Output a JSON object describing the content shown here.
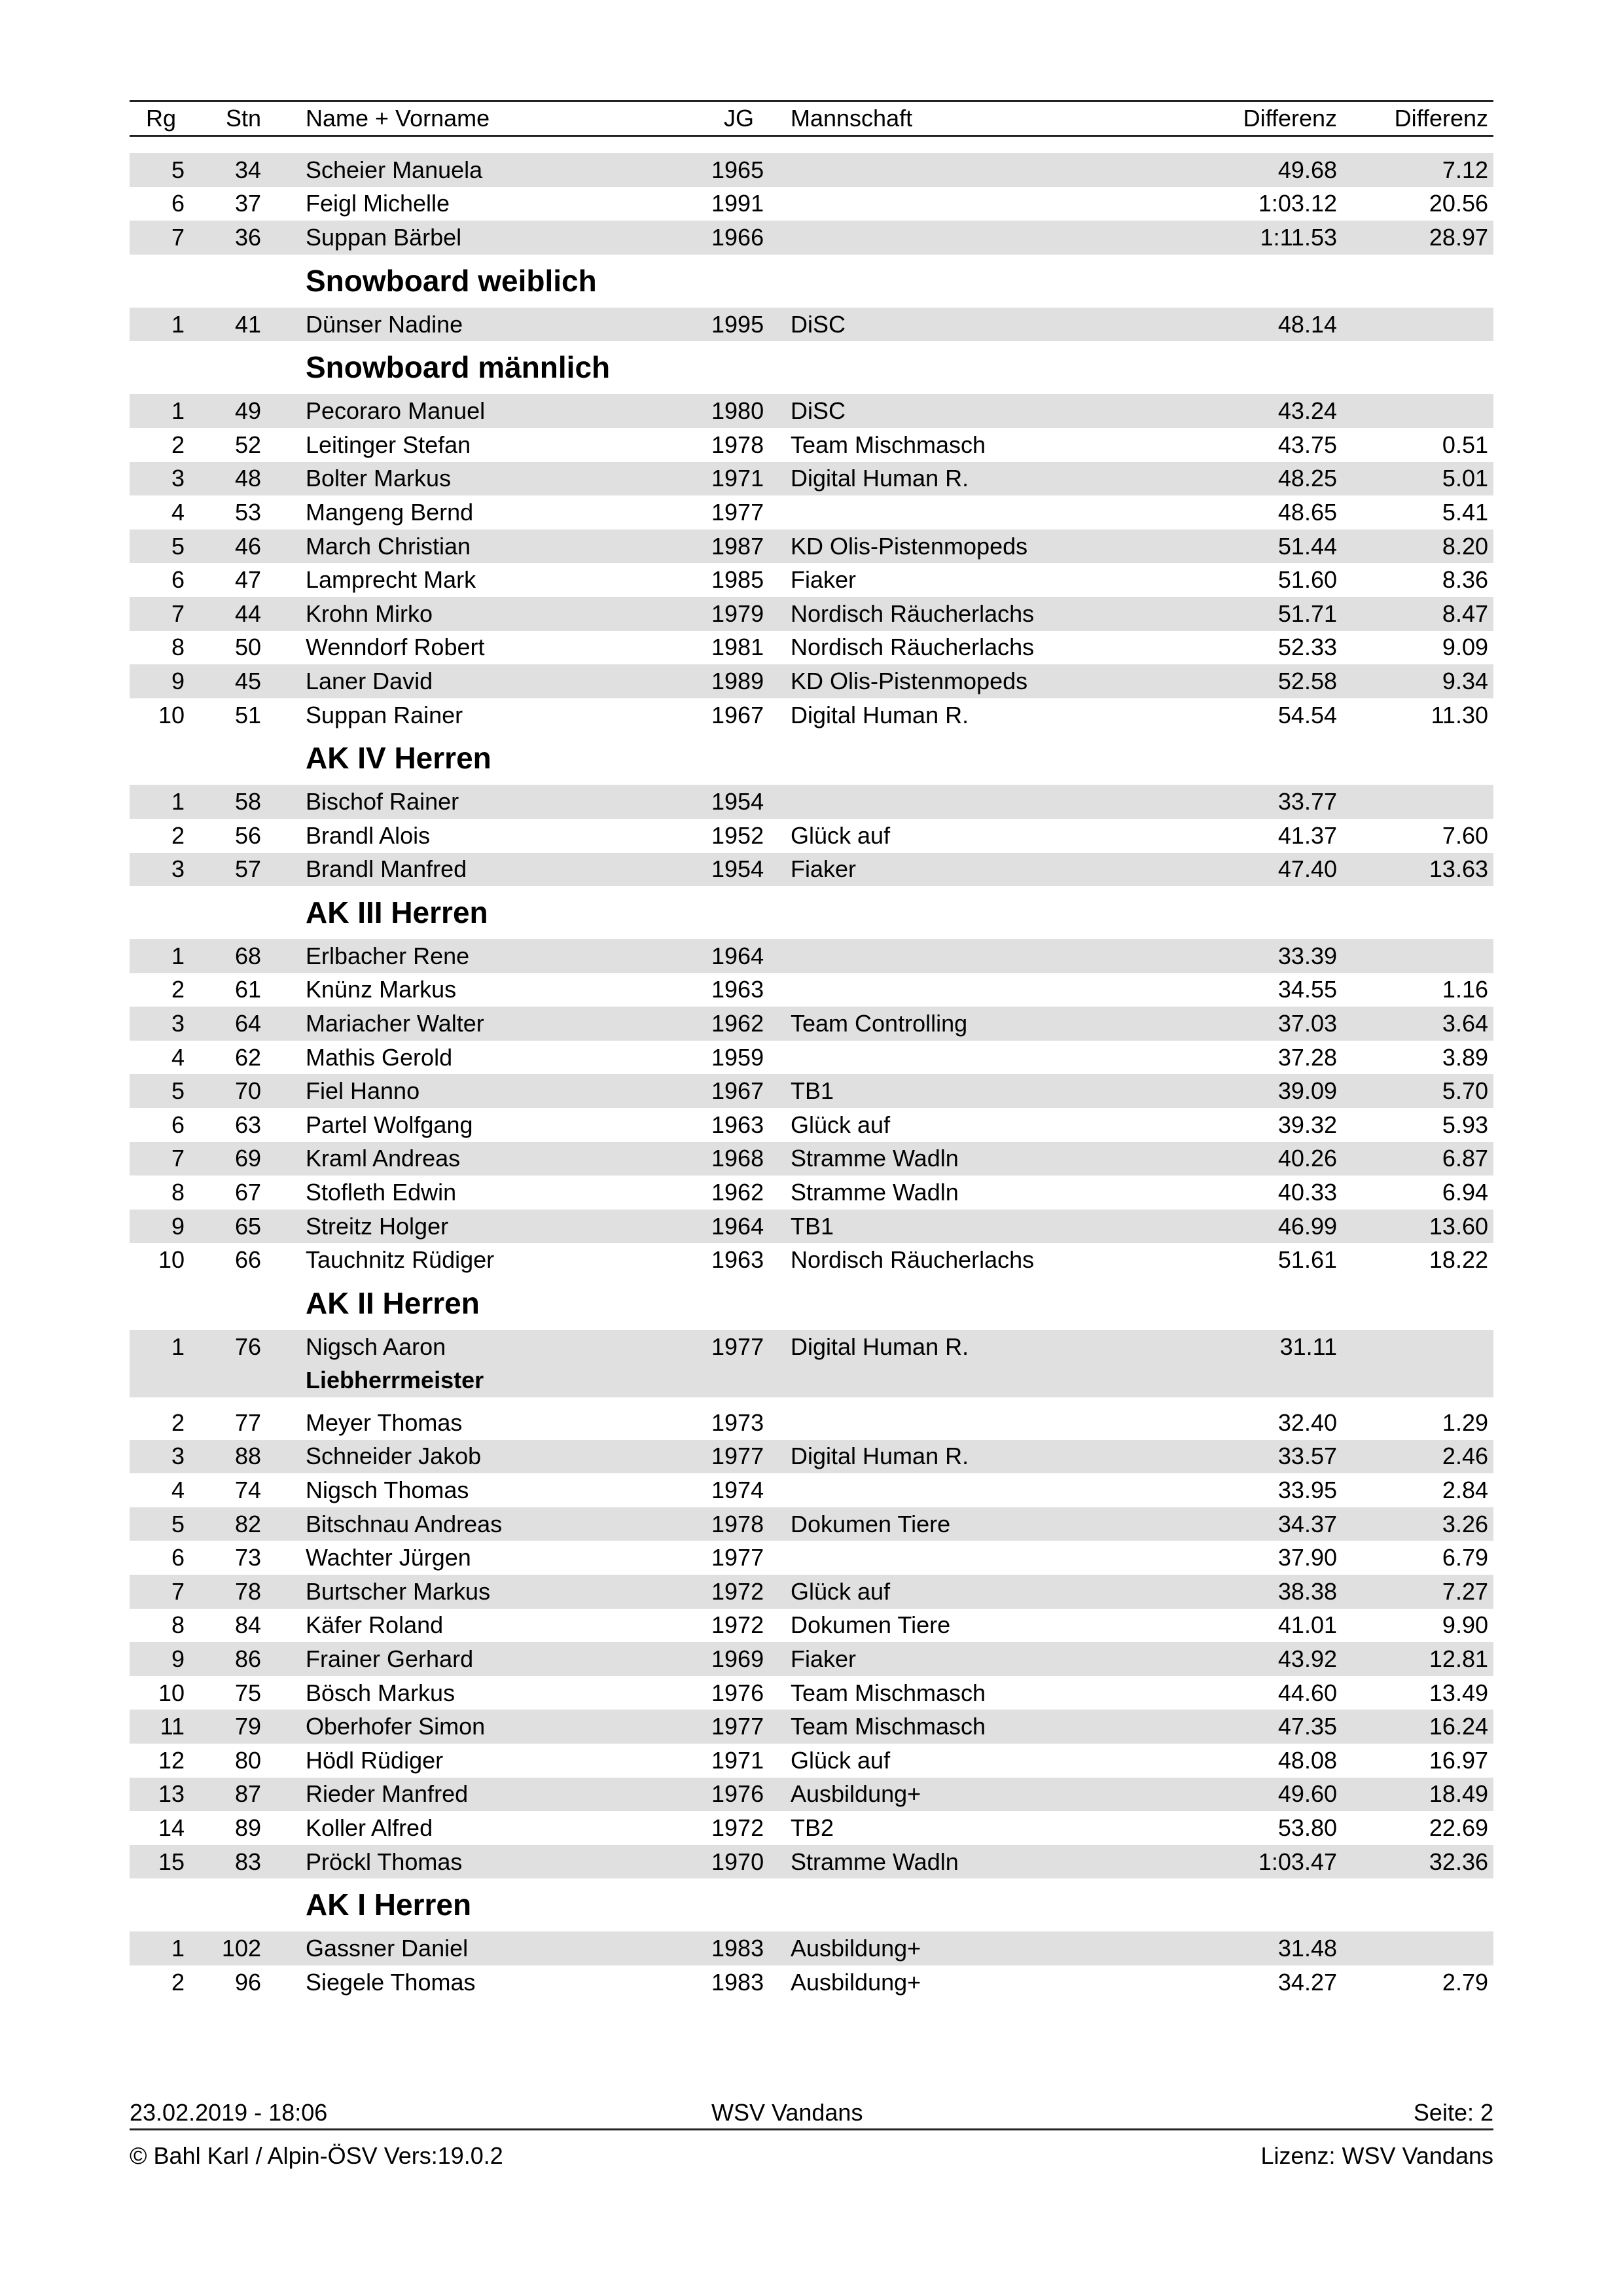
{
  "header": {
    "rg": "Rg",
    "stn": "Stn",
    "name": "Name + Vorname",
    "jg": "JG",
    "team": "Mannschaft",
    "diff1": "Differenz",
    "diff2": "Differenz"
  },
  "groups": [
    {
      "title": "",
      "rows": [
        {
          "rg": "5",
          "stn": "34",
          "name": "Scheier Manuela",
          "jg": "1965",
          "team": "",
          "d1": "49.68",
          "d2": "7.12"
        },
        {
          "rg": "6",
          "stn": "37",
          "name": "Feigl Michelle",
          "jg": "1991",
          "team": "",
          "d1": "1:03.12",
          "d2": "20.56"
        },
        {
          "rg": "7",
          "stn": "36",
          "name": "Suppan Bärbel",
          "jg": "1966",
          "team": "",
          "d1": "1:11.53",
          "d2": "28.97"
        }
      ]
    },
    {
      "title": "Snowboard weiblich",
      "rows": [
        {
          "rg": "1",
          "stn": "41",
          "name": "Dünser Nadine",
          "jg": "1995",
          "team": "DiSC",
          "d1": "48.14",
          "d2": ""
        }
      ]
    },
    {
      "title": "Snowboard männlich",
      "rows": [
        {
          "rg": "1",
          "stn": "49",
          "name": "Pecoraro Manuel",
          "jg": "1980",
          "team": "DiSC",
          "d1": "43.24",
          "d2": ""
        },
        {
          "rg": "2",
          "stn": "52",
          "name": "Leitinger Stefan",
          "jg": "1978",
          "team": "Team Mischmasch",
          "d1": "43.75",
          "d2": "0.51"
        },
        {
          "rg": "3",
          "stn": "48",
          "name": "Bolter Markus",
          "jg": "1971",
          "team": "Digital Human R.",
          "d1": "48.25",
          "d2": "5.01"
        },
        {
          "rg": "4",
          "stn": "53",
          "name": "Mangeng Bernd",
          "jg": "1977",
          "team": "",
          "d1": "48.65",
          "d2": "5.41"
        },
        {
          "rg": "5",
          "stn": "46",
          "name": "March Christian",
          "jg": "1987",
          "team": "KD Olis-Pistenmopeds",
          "d1": "51.44",
          "d2": "8.20"
        },
        {
          "rg": "6",
          "stn": "47",
          "name": "Lamprecht Mark",
          "jg": "1985",
          "team": "Fiaker",
          "d1": "51.60",
          "d2": "8.36"
        },
        {
          "rg": "7",
          "stn": "44",
          "name": "Krohn Mirko",
          "jg": "1979",
          "team": "Nordisch Räucherlachs",
          "d1": "51.71",
          "d2": "8.47"
        },
        {
          "rg": "8",
          "stn": "50",
          "name": "Wenndorf Robert",
          "jg": "1981",
          "team": "Nordisch Räucherlachs",
          "d1": "52.33",
          "d2": "9.09"
        },
        {
          "rg": "9",
          "stn": "45",
          "name": "Laner David",
          "jg": "1989",
          "team": "KD Olis-Pistenmopeds",
          "d1": "52.58",
          "d2": "9.34"
        },
        {
          "rg": "10",
          "stn": "51",
          "name": "Suppan Rainer",
          "jg": "1967",
          "team": "Digital Human R.",
          "d1": "54.54",
          "d2": "11.30"
        }
      ]
    },
    {
      "title": "AK IV Herren",
      "rows": [
        {
          "rg": "1",
          "stn": "58",
          "name": "Bischof Rainer",
          "jg": "1954",
          "team": "",
          "d1": "33.77",
          "d2": ""
        },
        {
          "rg": "2",
          "stn": "56",
          "name": "Brandl Alois",
          "jg": "1952",
          "team": "Glück auf",
          "d1": "41.37",
          "d2": "7.60"
        },
        {
          "rg": "3",
          "stn": "57",
          "name": "Brandl Manfred",
          "jg": "1954",
          "team": "Fiaker",
          "d1": "47.40",
          "d2": "13.63"
        }
      ]
    },
    {
      "title": "AK III Herren",
      "rows": [
        {
          "rg": "1",
          "stn": "68",
          "name": "Erlbacher Rene",
          "jg": "1964",
          "team": "",
          "d1": "33.39",
          "d2": ""
        },
        {
          "rg": "2",
          "stn": "61",
          "name": "Knünz Markus",
          "jg": "1963",
          "team": "",
          "d1": "34.55",
          "d2": "1.16"
        },
        {
          "rg": "3",
          "stn": "64",
          "name": "Mariacher Walter",
          "jg": "1962",
          "team": "Team Controlling",
          "d1": "37.03",
          "d2": "3.64"
        },
        {
          "rg": "4",
          "stn": "62",
          "name": "Mathis Gerold",
          "jg": "1959",
          "team": "",
          "d1": "37.28",
          "d2": "3.89"
        },
        {
          "rg": "5",
          "stn": "70",
          "name": "Fiel Hanno",
          "jg": "1967",
          "team": "TB1",
          "d1": "39.09",
          "d2": "5.70"
        },
        {
          "rg": "6",
          "stn": "63",
          "name": "Partel Wolfgang",
          "jg": "1963",
          "team": "Glück auf",
          "d1": "39.32",
          "d2": "5.93"
        },
        {
          "rg": "7",
          "stn": "69",
          "name": "Kraml Andreas",
          "jg": "1968",
          "team": "Stramme Wadln",
          "d1": "40.26",
          "d2": "6.87"
        },
        {
          "rg": "8",
          "stn": "67",
          "name": "Stofleth Edwin",
          "jg": "1962",
          "team": "Stramme Wadln",
          "d1": "40.33",
          "d2": "6.94"
        },
        {
          "rg": "9",
          "stn": "65",
          "name": "Streitz Holger",
          "jg": "1964",
          "team": "TB1",
          "d1": "46.99",
          "d2": "13.60"
        },
        {
          "rg": "10",
          "stn": "66",
          "name": "Tauchnitz Rüdiger",
          "jg": "1963",
          "team": "Nordisch Räucherlachs",
          "d1": "51.61",
          "d2": "18.22"
        }
      ]
    },
    {
      "title": "AK II Herren",
      "rows": [
        {
          "rg": "1",
          "stn": "76",
          "name": "Nigsch Aaron",
          "note": "Liebherrmeister",
          "jg": "1977",
          "team": "Digital Human R.",
          "d1": "31.11",
          "d2": ""
        },
        {
          "rg": "2",
          "stn": "77",
          "name": "Meyer Thomas",
          "jg": "1973",
          "team": "",
          "d1": "32.40",
          "d2": "1.29"
        },
        {
          "rg": "3",
          "stn": "88",
          "name": "Schneider Jakob",
          "jg": "1977",
          "team": "Digital Human R.",
          "d1": "33.57",
          "d2": "2.46"
        },
        {
          "rg": "4",
          "stn": "74",
          "name": "Nigsch Thomas",
          "jg": "1974",
          "team": "",
          "d1": "33.95",
          "d2": "2.84"
        },
        {
          "rg": "5",
          "stn": "82",
          "name": "Bitschnau Andreas",
          "jg": "1978",
          "team": "Dokumen Tiere",
          "d1": "34.37",
          "d2": "3.26"
        },
        {
          "rg": "6",
          "stn": "73",
          "name": "Wachter Jürgen",
          "jg": "1977",
          "team": "",
          "d1": "37.90",
          "d2": "6.79"
        },
        {
          "rg": "7",
          "stn": "78",
          "name": "Burtscher Markus",
          "jg": "1972",
          "team": "Glück auf",
          "d1": "38.38",
          "d2": "7.27"
        },
        {
          "rg": "8",
          "stn": "84",
          "name": "Käfer Roland",
          "jg": "1972",
          "team": "Dokumen Tiere",
          "d1": "41.01",
          "d2": "9.90"
        },
        {
          "rg": "9",
          "stn": "86",
          "name": "Frainer Gerhard",
          "jg": "1969",
          "team": "Fiaker",
          "d1": "43.92",
          "d2": "12.81"
        },
        {
          "rg": "10",
          "stn": "75",
          "name": "Bösch Markus",
          "jg": "1976",
          "team": "Team Mischmasch",
          "d1": "44.60",
          "d2": "13.49"
        },
        {
          "rg": "11",
          "stn": "79",
          "name": "Oberhofer Simon",
          "jg": "1977",
          "team": "Team Mischmasch",
          "d1": "47.35",
          "d2": "16.24"
        },
        {
          "rg": "12",
          "stn": "80",
          "name": "Hödl Rüdiger",
          "jg": "1971",
          "team": "Glück auf",
          "d1": "48.08",
          "d2": "16.97"
        },
        {
          "rg": "13",
          "stn": "87",
          "name": "Rieder Manfred",
          "jg": "1976",
          "team": "Ausbildung+",
          "d1": "49.60",
          "d2": "18.49"
        },
        {
          "rg": "14",
          "stn": "89",
          "name": "Koller Alfred",
          "jg": "1972",
          "team": "TB2",
          "d1": "53.80",
          "d2": "22.69"
        },
        {
          "rg": "15",
          "stn": "83",
          "name": "Pröckl Thomas",
          "jg": "1970",
          "team": "Stramme Wadln",
          "d1": "1:03.47",
          "d2": "32.36"
        }
      ]
    },
    {
      "title": "AK I Herren",
      "rows": [
        {
          "rg": "1",
          "stn": "102",
          "name": "Gassner Daniel",
          "jg": "1983",
          "team": "Ausbildung+",
          "d1": "31.48",
          "d2": ""
        },
        {
          "rg": "2",
          "stn": "96",
          "name": "Siegele Thomas",
          "jg": "1983",
          "team": "Ausbildung+",
          "d1": "34.27",
          "d2": "2.79"
        }
      ]
    }
  ],
  "footer": {
    "datetime": "23.02.2019 - 18:06",
    "club": "WSV Vandans",
    "page": "Seite: 2",
    "copyright": "© Bahl Karl / Alpin-ÖSV  Vers:19.0.2",
    "license": "Lizenz:  WSV Vandans"
  },
  "colors": {
    "row_shade": "#e0e0e0",
    "rule": "#222222"
  }
}
